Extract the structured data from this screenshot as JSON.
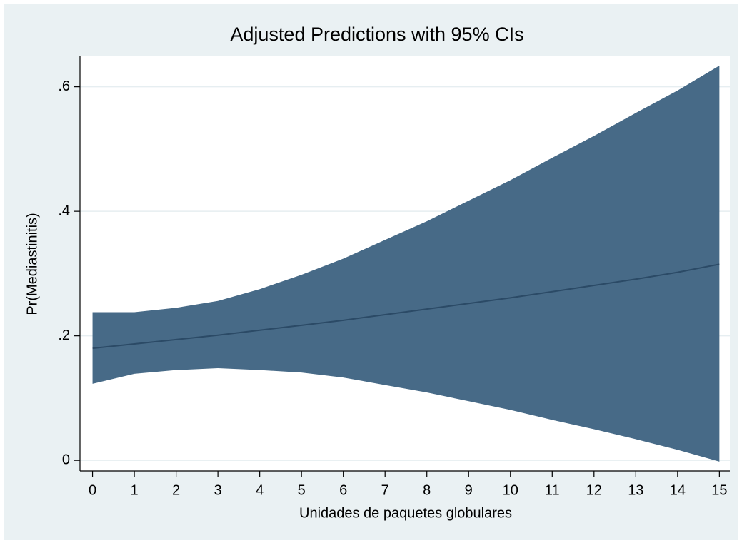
{
  "chart_data": {
    "type": "line",
    "title": "Adjusted Predictions with 95% CIs",
    "xlabel": "Unidades de paquetes globulares",
    "ylabel": "Pr(Mediastinitis)",
    "x": [
      0,
      1,
      2,
      3,
      4,
      5,
      6,
      7,
      8,
      9,
      10,
      11,
      12,
      13,
      14,
      15
    ],
    "values": [
      0.18,
      0.187,
      0.194,
      0.201,
      0.209,
      0.217,
      0.225,
      0.234,
      0.243,
      0.252,
      0.261,
      0.271,
      0.281,
      0.291,
      0.302,
      0.315
    ],
    "upper": [
      0.238,
      0.238,
      0.245,
      0.256,
      0.275,
      0.298,
      0.324,
      0.354,
      0.384,
      0.417,
      0.45,
      0.486,
      0.521,
      0.558,
      0.594,
      0.634
    ],
    "lower": [
      0.123,
      0.139,
      0.145,
      0.148,
      0.145,
      0.141,
      0.133,
      0.121,
      0.109,
      0.095,
      0.081,
      0.065,
      0.05,
      0.034,
      0.017,
      -0.002
    ],
    "color": "#2b4a66",
    "band_color": "#476a87",
    "xlim": [
      -0.3,
      15.25
    ],
    "ylim": [
      -0.017,
      0.65
    ],
    "xticks": [
      0,
      1,
      2,
      3,
      4,
      5,
      6,
      7,
      8,
      9,
      10,
      11,
      12,
      13,
      14,
      15
    ],
    "yticks": [
      0,
      {
        "value": 0.2,
        "label": ".2"
      },
      {
        "value": 0.4,
        "label": ".4"
      },
      {
        "value": 0.6,
        "label": ".6"
      }
    ],
    "grid": true
  }
}
